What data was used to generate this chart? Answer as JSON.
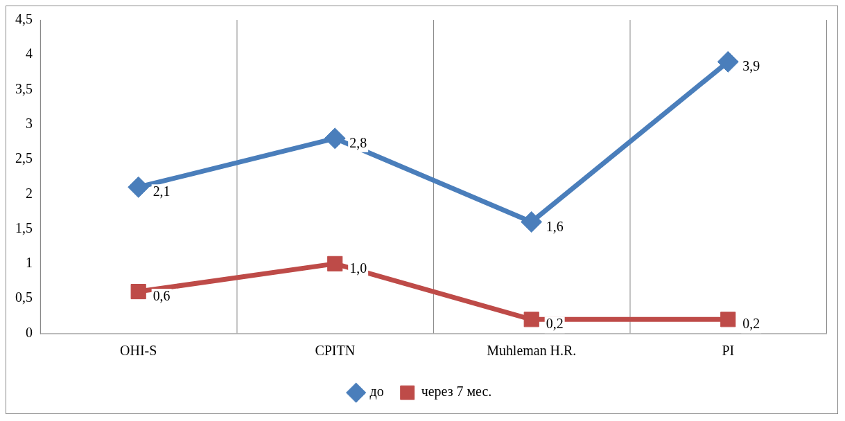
{
  "chart_data": {
    "type": "line",
    "categories": [
      "OHI-S",
      "CPITN",
      "Muhleman H.R.",
      "PI"
    ],
    "series": [
      {
        "name": "до",
        "color": "#4a7ebb",
        "marker": "diamond",
        "values": [
          2.1,
          2.8,
          1.6,
          3.9
        ],
        "value_labels": [
          "2,1",
          "2,8",
          "1,6",
          "3,9"
        ]
      },
      {
        "name": "через 7 мес.",
        "color": "#be4b48",
        "marker": "square",
        "values": [
          0.6,
          1.0,
          0.2,
          0.2
        ],
        "value_labels": [
          "0,6",
          "1,0",
          "0,2",
          "0,2"
        ]
      }
    ],
    "ylim": [
      0,
      4.5
    ],
    "yticks": [
      0,
      {
        "value": 0.5,
        "label": "0,5"
      },
      1,
      {
        "value": 1.5,
        "label": "1,5"
      },
      2,
      {
        "value": 2.5,
        "label": "2,5"
      },
      3,
      {
        "value": 3.5,
        "label": "3,5"
      },
      4,
      {
        "value": 4.5,
        "label": "4,5"
      }
    ],
    "grid": "x",
    "legend": "bottom",
    "line_style": "solid"
  }
}
